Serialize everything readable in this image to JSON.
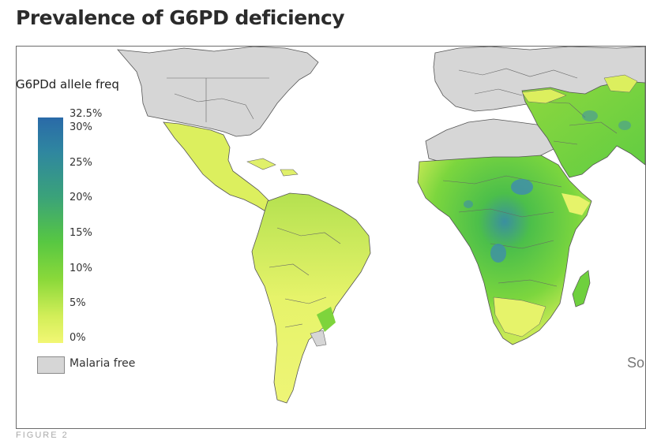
{
  "title": "Prevalence of G6PD deficiency",
  "legend": {
    "title": "G6PDd allele freq",
    "max_label": "32.5%",
    "ticks": [
      "30%",
      "25%",
      "20%",
      "15%",
      "10%",
      "5%",
      "0%"
    ],
    "colors": {
      "high": "#2a6aa8",
      "mid": "#57c742",
      "low": "#f2f774",
      "malaria_free": "#d6d6d6"
    },
    "malaria_free_label": "Malaria free"
  },
  "source_label": "So",
  "caption_fragment": "FIGURE 2"
}
